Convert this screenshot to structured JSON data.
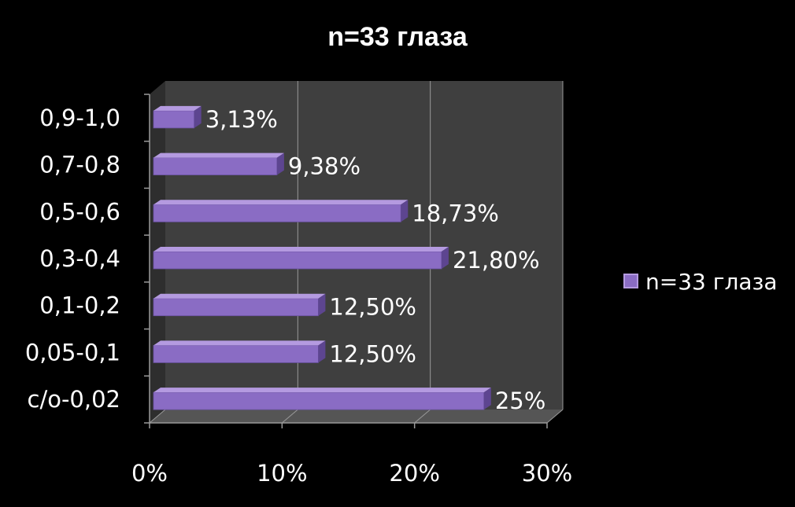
{
  "chart_data": {
    "type": "bar",
    "orientation": "horizontal",
    "title": "n=33 глаза",
    "categories": [
      "с/о-0,02",
      "0,05-0,1",
      "0,1-0,2",
      "0,3-0,4",
      "0,5-0,6",
      "0,7-0,8",
      "0,9-1,0"
    ],
    "series": [
      {
        "name": "n=33 глаза",
        "values": [
          25,
          12.5,
          12.5,
          21.8,
          18.73,
          9.38,
          3.13
        ],
        "labels": [
          "25%",
          "12,50%",
          "12,50%",
          "21,80%",
          "18,73%",
          "9,38%",
          "3,13%"
        ]
      }
    ],
    "x_ticks": [
      "0%",
      "10%",
      "20%",
      "30%"
    ],
    "xlim": [
      0,
      30
    ],
    "grid": true,
    "legend_position": "right",
    "colors": {
      "background": "#000000",
      "plot_area": "#3f3f3f",
      "bar_front": "#8a6cc4",
      "bar_top": "#b49ae0",
      "bar_side": "#5d4590",
      "gridline": "#9a9a9a",
      "text": "#ffffff"
    }
  }
}
